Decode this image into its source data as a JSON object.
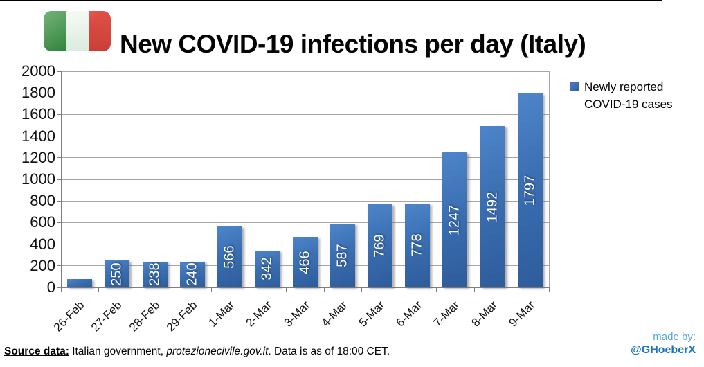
{
  "page": {
    "background": "#ffffff",
    "top_border_color": "#000000"
  },
  "header": {
    "title": "New COVID-19 infections per day (Italy)"
  },
  "icons": {
    "flag": "italy-flag-icon",
    "legend_swatch": "legend-color-swatch"
  },
  "flag_colors": {
    "green": "#44984C",
    "white": "#F3FAF4",
    "red": "#E05148"
  },
  "legend": {
    "swatch_color": "#3A71B3",
    "lines": [
      "Newly reported",
      "COVID-19 cases"
    ]
  },
  "footer": {
    "source_label": "Source data:",
    "source_text_1": " Italian government, ",
    "source_italic": "protezionecivile.gov.it",
    "source_text_2": ". Data is as of 18:00 CET.",
    "credit_line_1": "made by:",
    "credit_line_2": "@GHoeberX",
    "credit_color_1": "#4FA8DC",
    "credit_color_2": "#1873BC"
  },
  "chart_data": {
    "type": "bar",
    "title": "New COVID-19 infections per day (Italy)",
    "categories": [
      "26-Feb",
      "27-Feb",
      "28-Feb",
      "29-Feb",
      "1-Mar",
      "2-Mar",
      "3-Mar",
      "4-Mar",
      "5-Mar",
      "6-Mar",
      "7-Mar",
      "8-Mar",
      "9-Mar"
    ],
    "values": [
      78,
      250,
      238,
      240,
      566,
      342,
      466,
      587,
      769,
      778,
      1247,
      1492,
      1797
    ],
    "bar_labels": [
      "",
      "250",
      "238",
      "240",
      "566",
      "342",
      "466",
      "587",
      "769",
      "778",
      "1247",
      "1492",
      "1797"
    ],
    "series": [
      {
        "name": "Newly reported COVID-19 cases",
        "values": [
          78,
          250,
          238,
          240,
          566,
          342,
          466,
          587,
          769,
          778,
          1247,
          1492,
          1797
        ]
      }
    ],
    "xlabel": "",
    "ylabel": "",
    "ylim": [
      0,
      2000
    ],
    "ytick_step": 200,
    "grid": true,
    "legend_position": "right",
    "bar_color_light": "#4E84C9",
    "bar_color_dark": "#2E5C9B",
    "gridline_color": "#A6A6A6",
    "axis_color": "#7F7F7F"
  }
}
